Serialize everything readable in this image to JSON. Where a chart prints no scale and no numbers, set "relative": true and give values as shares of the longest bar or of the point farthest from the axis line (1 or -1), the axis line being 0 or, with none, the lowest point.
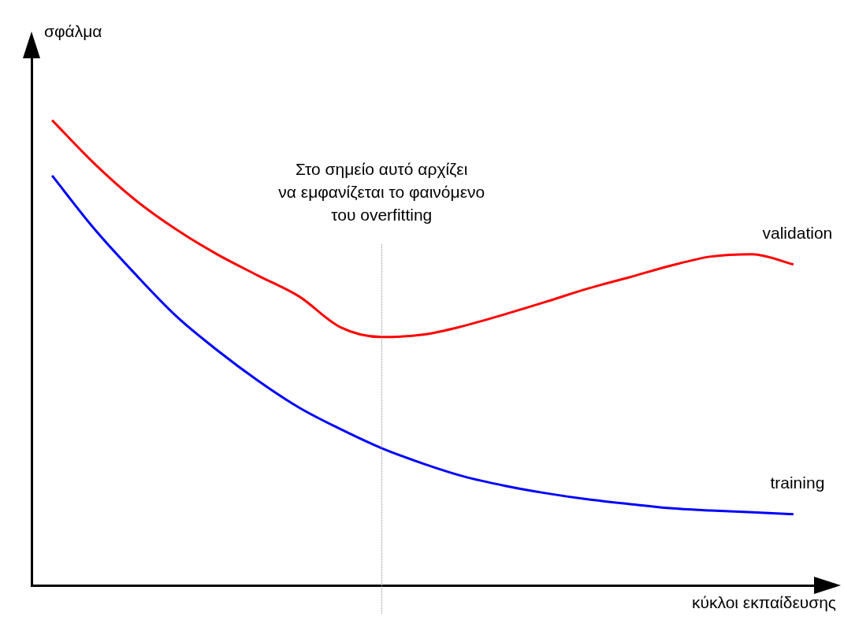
{
  "chart_data": {
    "type": "line",
    "relative": true,
    "xlabel": "κύκλοι εκπαίδευσης",
    "ylabel": "σφάλμα",
    "annotations": [
      "Στο σημείο αυτό αρχίζει\nνα εμφανίζεται το φαινόμενο\nτου overfitting"
    ],
    "categories": [
      null,
      null,
      null,
      null,
      null,
      null,
      null,
      null,
      null,
      null,
      null,
      null,
      null,
      null,
      null,
      null,
      null,
      null,
      null
    ],
    "series": [
      {
        "name": "validation",
        "color": "#ff0000",
        "values": [
          1,
          0.909,
          0.83,
          0.766,
          0.712,
          0.666,
          0.621,
          0.555,
          0.534,
          0.539,
          0.558,
          0.583,
          0.61,
          0.638,
          0.662,
          0.687,
          0.707,
          0.712,
          0.69
        ]
      },
      {
        "name": "training",
        "color": "#0000ff",
        "values": [
          0.881,
          0.769,
          0.671,
          0.58,
          0.506,
          0.44,
          0.382,
          0.336,
          0.295,
          0.262,
          0.234,
          0.214,
          0.198,
          0.185,
          0.175,
          0.166,
          0.161,
          0.157,
          0.153
        ]
      }
    ],
    "legend": false,
    "grid": false,
    "marker": "none",
    "line_style": "solid"
  }
}
